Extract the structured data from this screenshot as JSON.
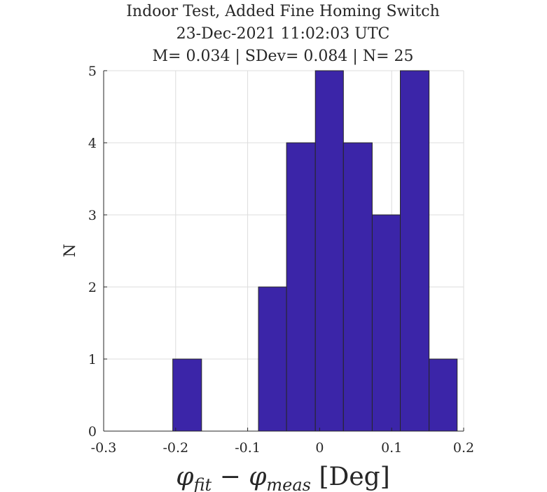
{
  "chart_data": {
    "type": "bar",
    "title": [
      "Indoor Test, Added Fine Homing Switch",
      "23-Dec-2021 11:02:03 UTC",
      "M= 0.034 | SDev= 0.084 | N= 25"
    ],
    "xlabel": {
      "phi1": "φ",
      "sub1": "fit",
      "minus": " − ",
      "phi2": "φ",
      "sub2": "meas",
      "unit": " [Deg]"
    },
    "ylabel": "N",
    "xlim": [
      -0.3,
      0.2
    ],
    "ylim": [
      0,
      5
    ],
    "xticks": [
      -0.3,
      -0.2,
      -0.1,
      0,
      0.1,
      0.2
    ],
    "xtick_labels": [
      "-0.3",
      "-0.2",
      "-0.1",
      "0",
      "0.1",
      "0.2"
    ],
    "yticks": [
      0,
      1,
      2,
      3,
      4,
      5
    ],
    "ytick_labels": [
      "0",
      "1",
      "2",
      "3",
      "4",
      "5"
    ],
    "grid": true,
    "bin_edges": [
      -0.204,
      -0.164,
      -0.125,
      -0.085,
      -0.046,
      -0.006,
      0.033,
      0.073,
      0.112,
      0.152,
      0.191
    ],
    "values": [
      1,
      0,
      0,
      2,
      4,
      5,
      4,
      3,
      5,
      1
    ],
    "bar_color": "#3b25a8"
  }
}
